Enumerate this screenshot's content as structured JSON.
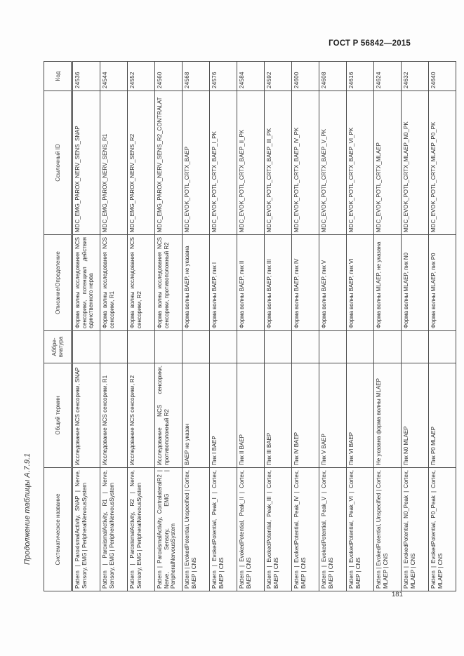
{
  "page": {
    "standard_ref": "ГОСТ Р 56842—2015",
    "table_caption": "Продолжение таблицы А.7.9.1",
    "page_number": "181"
  },
  "table": {
    "columns": [
      "Систематическое название",
      "Общий термин",
      "Аббре-виатура",
      "Описание/Определение",
      "Ссылочный ID",
      "Код"
    ],
    "rows": [
      {
        "systematic": "Pattern | ParoxismalActivity, SNAP | Nerve, Sensory, EMG | PeripheralNervousSystem",
        "general": "Исследование NCS сенсорики, SNAP",
        "abbr": "",
        "description": "Форма волны исследования NCS сенсорики, потенциал действия единственного нерва",
        "ref_id": "MDC_EMG_PAROX_NERV_SENS_SNAP",
        "code": "24536"
      },
      {
        "systematic": "Pattern | ParoxismalActivity, R1 | Nerve, Sensory, EMG | PeripheralNervousSystem",
        "general": "Исследование NCS сенсорики, R1",
        "abbr": "",
        "description": "Форма волны исследования NCS сенсорики, R1",
        "ref_id": "MDC_EMG_PAROX_NERV_SENS_R1",
        "code": "24544"
      },
      {
        "systematic": "Pattern | ParoxismalActivity, R2 | Nerve, Sensory, EMG | PeripheralNervousSystem",
        "general": "Исследование NCS сенсорики, R2",
        "abbr": "",
        "description": "Форма волны исследования NCS сенсорики, R2",
        "ref_id": "MDC_EMG_PAROX_NERV_SENS_R2",
        "code": "24552"
      },
      {
        "systematic": "Pattern | ParoxismalActivity, ContralateralR2 | Nerve, Sensory, EMG | PeripheralNervousSystem",
        "general": "Исследование NCS сенсорики, противоположный R2",
        "abbr": "",
        "description": "Форма волны исследования NCS сенсорики, противоположный R2",
        "ref_id": "MDC_EMG_PAROX_NERV_SENS_R2_CONTRALAT",
        "code": "24560"
      },
      {
        "systematic": "Pattern | EvokedPotential, Unspecified | Cortex, BAEP | CNS",
        "general": "BAEP не указан",
        "abbr": "",
        "description": "Форма волны BAEP, не указана",
        "ref_id": "MDC_EVOK_POTL_CRTX_BAEP",
        "code": "24568"
      },
      {
        "systematic": "Pattern | EvokedPotential, Peak_I | Cortex, BAEP | CNS",
        "general": "Пик I BAEP",
        "abbr": "",
        "description": "Форма волны BAEP, пик I",
        "ref_id": "MDC_EVOK_POTL_CRTX_BAEP_I_PK",
        "code": "24576"
      },
      {
        "systematic": "Pattern | EvokedPotential, Peak_II | Cortex, BAEP | CNS",
        "general": "Пик II BAEP",
        "abbr": "",
        "description": "Форма волны BAEP, пик II",
        "ref_id": "MDC_EVOK_POTL_CRTX_BAEP_II_PK",
        "code": "24584"
      },
      {
        "systematic": "Pattern | EvokedPotential, Peak_III | Cortex, BAEP | CNS",
        "general": "Пик III BAEP",
        "abbr": "",
        "description": "Форма волны BAEP, пик III",
        "ref_id": "MDC_EVOK_POTL_CRTX_BAEP_III_PK",
        "code": "24592"
      },
      {
        "systematic": "Pattern | EvokedPotential, Peak_IV | Cortex, BAEP | CNS",
        "general": "Пик IV BAEP",
        "abbr": "",
        "description": "Форма волны BAEP, пик IV",
        "ref_id": "MDC_EVOK_POTL_CRTX_BAEP_IV_PK",
        "code": "24600"
      },
      {
        "systematic": "Pattern | EvokedPotential, Peak_V | Cortex, BAEP | CNS",
        "general": "Пик V BAEP",
        "abbr": "",
        "description": "Форма волны BAEP, пик V",
        "ref_id": "MDC_EVOK_POTL_CRTX_BAEP_V_PK",
        "code": "24608"
      },
      {
        "systematic": "Pattern | EvokedPotential, Peak_VI | Cortex, BAEP | CNS",
        "general": "Пик VI BAEP",
        "abbr": "",
        "description": "Форма волны BAEP, пик VI",
        "ref_id": "MDC_EVOK_POTL_CRTX_BAEP_VI_PK",
        "code": "24616"
      },
      {
        "systematic": "Pattern | EvokedPotential, Unspecified | Cortex, MLAEP | CNS",
        "general": "Не указана форма волны MLAEP",
        "abbr": "",
        "description": "Форма волны MLAEP, не указана",
        "ref_id": "MDC_EVOK_POTL_CRTX_MLAEP",
        "code": "24624"
      },
      {
        "systematic": "Pattern | EvokedPotential, N0_Peak | Cortex, MLAEP | CNS",
        "general": "Пик N0 MLAEP",
        "abbr": "",
        "description": "Форма волны MLAEP, пик N0",
        "ref_id": "MDC_EVOK_POTL_CRTX_MLAEP_N0_PK",
        "code": "24632"
      },
      {
        "systematic": "Pattern | EvokedPotential, P0_Peak | Cortex, MLAEP | CNS",
        "general": "Пик P0 MLAEP",
        "abbr": "",
        "description": "Форма волны MLAEP, пик P0",
        "ref_id": "MDC_EVOK_POTL_CRTX_MLAEP_P0_PK",
        "code": "24640"
      }
    ]
  }
}
